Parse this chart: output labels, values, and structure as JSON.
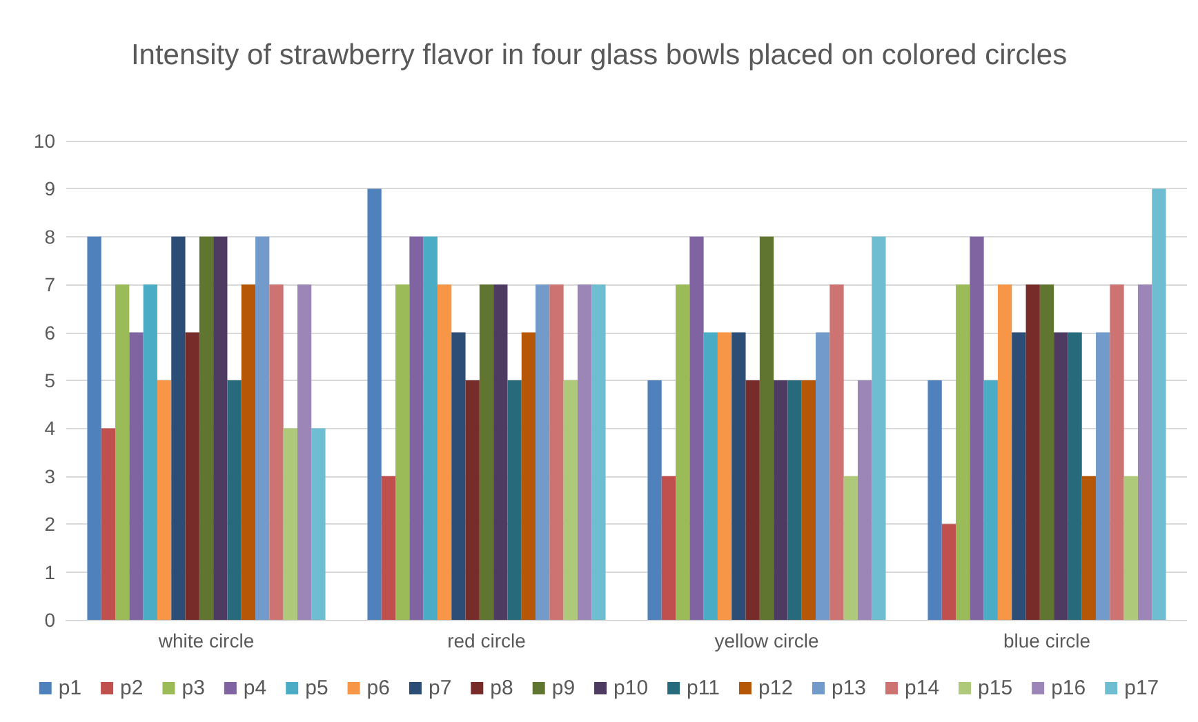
{
  "chart_data": {
    "type": "bar",
    "title": "Intensity of strawberry flavor in four glass bowls placed on colored circles",
    "categories": [
      "white circle",
      "red circle",
      "yellow circle",
      "blue circle"
    ],
    "series": [
      {
        "name": "p1",
        "color": "#4f81bd",
        "values": [
          8,
          9,
          5,
          5
        ]
      },
      {
        "name": "p2",
        "color": "#c0504d",
        "values": [
          4,
          3,
          3,
          2
        ]
      },
      {
        "name": "p3",
        "color": "#9bbb59",
        "values": [
          7,
          7,
          7,
          7
        ]
      },
      {
        "name": "p4",
        "color": "#8064a2",
        "values": [
          6,
          8,
          8,
          8
        ]
      },
      {
        "name": "p5",
        "color": "#4bacc6",
        "values": [
          7,
          8,
          6,
          5
        ]
      },
      {
        "name": "p6",
        "color": "#f79646",
        "values": [
          5,
          7,
          6,
          7
        ]
      },
      {
        "name": "p7",
        "color": "#2c4d75",
        "values": [
          8,
          6,
          6,
          6
        ]
      },
      {
        "name": "p8",
        "color": "#772c2a",
        "values": [
          6,
          5,
          5,
          7
        ]
      },
      {
        "name": "p9",
        "color": "#5f7530",
        "values": [
          8,
          7,
          8,
          7
        ]
      },
      {
        "name": "p10",
        "color": "#4d3b62",
        "values": [
          8,
          7,
          5,
          6
        ]
      },
      {
        "name": "p11",
        "color": "#276a7c",
        "values": [
          5,
          5,
          5,
          6
        ]
      },
      {
        "name": "p12",
        "color": "#b65708",
        "values": [
          7,
          6,
          5,
          3
        ]
      },
      {
        "name": "p13",
        "color": "#729aca",
        "values": [
          8,
          7,
          6,
          6
        ]
      },
      {
        "name": "p14",
        "color": "#cd7371",
        "values": [
          7,
          7,
          7,
          7
        ]
      },
      {
        "name": "p15",
        "color": "#afc97a",
        "values": [
          4,
          5,
          3,
          3
        ]
      },
      {
        "name": "p16",
        "color": "#9c85b7",
        "values": [
          7,
          7,
          5,
          7
        ]
      },
      {
        "name": "p17",
        "color": "#6fbdd1",
        "values": [
          4,
          7,
          8,
          9
        ]
      }
    ],
    "ylim": [
      0,
      10
    ],
    "yticks": [
      0,
      1,
      2,
      3,
      4,
      5,
      6,
      7,
      8,
      9,
      10
    ],
    "grid": "y",
    "legend": "bottom"
  }
}
